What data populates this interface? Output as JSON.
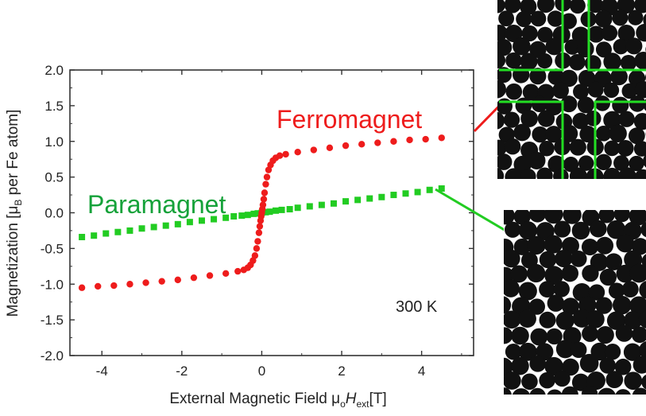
{
  "chart_data": {
    "type": "scatter",
    "xlabel_parts": [
      "External Magnetic Field μ",
      "o",
      "H",
      "ext",
      "[T]"
    ],
    "ylabel_parts": [
      "Magnetization [μ",
      "B",
      " per Fe atom]"
    ],
    "xlim": [
      -4.8,
      5.3
    ],
    "ylim": [
      -2.0,
      2.0
    ],
    "x_ticks": [
      -4,
      -2,
      0,
      2,
      4
    ],
    "x_tick_labels": [
      "-4",
      "-2",
      "0",
      "2",
      "4"
    ],
    "y_ticks": [
      2.0,
      1.5,
      1.0,
      0.5,
      0.0,
      -0.5,
      -1.0,
      -1.5,
      -2.0
    ],
    "y_tick_labels": [
      "2.0",
      "1.5",
      "1.0",
      "0.5",
      "0.0",
      "-0.5",
      "-1.0",
      "-1.5",
      "-2.0"
    ],
    "grid": false,
    "series": [
      {
        "name": "Ferromagnet",
        "color": "#ee1c1c",
        "x": [
          -4.5,
          -4.1,
          -3.7,
          -3.3,
          -2.9,
          -2.5,
          -2.1,
          -1.7,
          -1.3,
          -0.9,
          -0.6,
          -0.45,
          -0.35,
          -0.28,
          -0.22,
          -0.17,
          -0.13,
          -0.1,
          -0.07,
          -0.05,
          -0.03,
          -0.015,
          0,
          0.015,
          0.03,
          0.05,
          0.07,
          0.1,
          0.13,
          0.17,
          0.22,
          0.28,
          0.35,
          0.45,
          0.6,
          0.9,
          1.3,
          1.7,
          2.1,
          2.5,
          2.9,
          3.3,
          3.7,
          4.1,
          4.5
        ],
        "y": [
          -1.05,
          -1.03,
          -1.02,
          -1.0,
          -0.98,
          -0.96,
          -0.94,
          -0.91,
          -0.88,
          -0.85,
          -0.82,
          -0.8,
          -0.77,
          -0.73,
          -0.67,
          -0.6,
          -0.5,
          -0.4,
          -0.28,
          -0.19,
          -0.11,
          -0.05,
          0.0,
          0.05,
          0.11,
          0.19,
          0.28,
          0.4,
          0.5,
          0.6,
          0.67,
          0.73,
          0.77,
          0.8,
          0.82,
          0.85,
          0.88,
          0.91,
          0.94,
          0.96,
          0.98,
          1.0,
          1.02,
          1.03,
          1.05
        ]
      },
      {
        "name": "Paramagnet",
        "color": "#22cc22",
        "x": [
          -4.5,
          -4.2,
          -3.9,
          -3.6,
          -3.3,
          -3.0,
          -2.7,
          -2.4,
          -2.1,
          -1.8,
          -1.5,
          -1.2,
          -0.9,
          -0.7,
          -0.5,
          -0.35,
          -0.2,
          -0.1,
          0,
          0.1,
          0.2,
          0.35,
          0.5,
          0.7,
          0.9,
          1.2,
          1.5,
          1.8,
          2.1,
          2.4,
          2.7,
          3.0,
          3.3,
          3.6,
          3.9,
          4.2,
          4.5
        ],
        "y": [
          -0.34,
          -0.32,
          -0.29,
          -0.27,
          -0.25,
          -0.22,
          -0.2,
          -0.18,
          -0.16,
          -0.13,
          -0.11,
          -0.09,
          -0.07,
          -0.05,
          -0.04,
          -0.03,
          -0.015,
          -0.008,
          0.0,
          0.008,
          0.015,
          0.03,
          0.04,
          0.05,
          0.07,
          0.09,
          0.11,
          0.13,
          0.16,
          0.18,
          0.2,
          0.22,
          0.25,
          0.27,
          0.29,
          0.32,
          0.34
        ]
      }
    ],
    "annotations": {
      "ferromagnet_label": "Ferromagnet",
      "paramagnet_label": "Paramagnet",
      "temperature_label": "300 K"
    },
    "insets": [
      {
        "depicts": "ferromagnet",
        "divider_color": "#22dd22"
      },
      {
        "depicts": "paramagnet"
      }
    ]
  }
}
